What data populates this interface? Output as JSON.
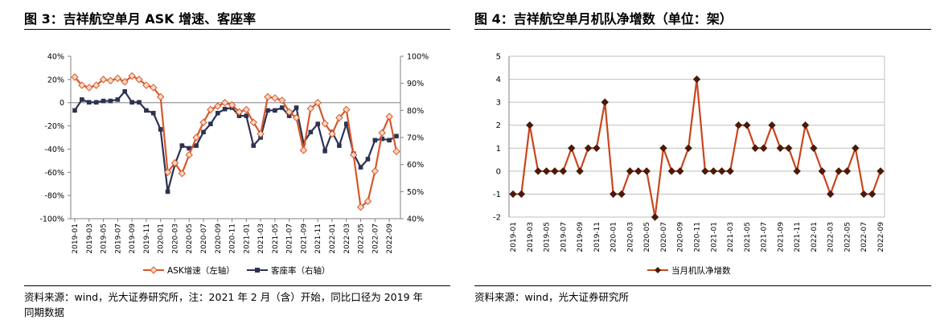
{
  "left": {
    "title": "图 3：吉祥航空单月 ASK 增速、客座率",
    "source_line1": "资料来源：wind，光大证券研究所，注：2021 年 2 月（含）开始，同比口径为 2019 年",
    "source_line2": "同期数据"
  },
  "right": {
    "title": "图 4：吉祥航空单月机队净增数（单位：架）",
    "source_line1": "资料来源：wind，光大证券研究所"
  },
  "colors": {
    "ask": "#D8572A",
    "ask_marker_fill": "#FAD7C2",
    "load": "#2D3252",
    "fleet": "#C8461E",
    "fleet_marker": "#4A1A0A",
    "grid": "#BFBFBF"
  },
  "chart_data": [
    {
      "type": "line",
      "xlabel": "",
      "ylabel": "",
      "y_left_ticks": [
        "40%",
        "20%",
        "0",
        "-20%",
        "-40%",
        "-60%",
        "-80%",
        "-100%"
      ],
      "y_right_ticks": [
        "100%",
        "90%",
        "80%",
        "70%",
        "60%",
        "50%",
        "40%"
      ],
      "ylim_left": [
        -100,
        40
      ],
      "ylim_right": [
        40,
        100
      ],
      "x_tick_labels": [
        "2019-01",
        "2019-03",
        "2019-05",
        "2019-07",
        "2019-09",
        "2019-11",
        "2020-01",
        "2020-03",
        "2020-05",
        "2020-07",
        "2020-09",
        "2020-11",
        "2021-01",
        "2021-03",
        "2021-05",
        "2021-07",
        "2021-09",
        "2021-11",
        "2022-01",
        "2022-03",
        "2022-05",
        "2022-07",
        "2022-09"
      ],
      "legend_position": "bottom",
      "series": [
        {
          "name": "ASK增速（左轴）",
          "axis": "left",
          "values": [
            22,
            15,
            13,
            15,
            20,
            19,
            21,
            18,
            23,
            20,
            15,
            13,
            5,
            -60,
            -52,
            -61,
            -45,
            -30,
            -17,
            -6,
            -3,
            0,
            -2,
            -8,
            -6,
            -17,
            -27,
            5,
            4,
            2,
            -8,
            -13,
            -41,
            -5,
            0,
            -18,
            -27,
            -13,
            -6,
            -45,
            -90,
            -85,
            -59,
            -26,
            -12,
            -42
          ]
        },
        {
          "name": "客座率（右轴）",
          "axis": "right",
          "values": [
            80,
            84,
            83,
            83,
            83.5,
            83.5,
            84,
            87,
            83,
            83,
            80,
            79,
            73,
            50,
            60,
            67,
            66,
            67,
            72,
            75,
            79,
            80.5,
            81,
            78,
            78,
            67,
            70,
            80,
            80,
            81,
            78,
            81,
            68,
            72,
            75,
            65,
            72,
            67,
            75,
            64,
            59,
            62,
            69,
            69.5,
            69,
            70.5
          ]
        }
      ]
    },
    {
      "type": "line",
      "xlabel": "",
      "ylabel": "",
      "y_ticks": [
        "5",
        "4",
        "3",
        "2",
        "1",
        "0",
        "-1",
        "-2"
      ],
      "ylim": [
        -2,
        5
      ],
      "x_tick_labels": [
        "2019-01",
        "2019-03",
        "2019-05",
        "2019-07",
        "2019-09",
        "2019-11",
        "2020-01",
        "2020-03",
        "2020-05",
        "2020-07",
        "2020-09",
        "2020-11",
        "2021-01",
        "2021-03",
        "2021-05",
        "2021-07",
        "2021-09",
        "2021-11",
        "2022-01",
        "2022-03",
        "2022-05",
        "2022-07",
        "2022-09"
      ],
      "legend_position": "bottom",
      "series": [
        {
          "name": "当月机队净增数",
          "values": [
            -1,
            -1,
            2,
            0,
            0,
            0,
            0,
            1,
            0,
            1,
            1,
            3,
            -1,
            -1,
            0,
            0,
            0,
            -2,
            1,
            0,
            0,
            1,
            4,
            0,
            0,
            0,
            0,
            2,
            2,
            1,
            1,
            2,
            1,
            1,
            0,
            2,
            1,
            0,
            -1,
            0,
            0,
            1,
            -1,
            -1,
            0
          ]
        }
      ]
    }
  ]
}
